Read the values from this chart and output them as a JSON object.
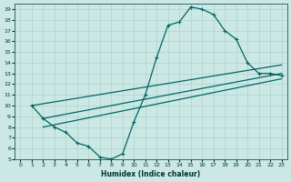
{
  "xlabel": "Humidex (Indice chaleur)",
  "bg_color": "#cce8e4",
  "grid_color": "#aad4cc",
  "line_color": "#006666",
  "xlim": [
    -0.5,
    23.5
  ],
  "ylim": [
    5,
    19.5
  ],
  "xticks": [
    0,
    1,
    2,
    3,
    4,
    5,
    6,
    7,
    8,
    9,
    10,
    11,
    12,
    13,
    14,
    15,
    16,
    17,
    18,
    19,
    20,
    21,
    22,
    23
  ],
  "yticks": [
    5,
    6,
    7,
    8,
    9,
    10,
    11,
    12,
    13,
    14,
    15,
    16,
    17,
    18,
    19
  ],
  "curve_main_x": [
    1,
    2,
    3,
    4,
    5,
    6,
    7,
    8,
    9,
    10,
    11,
    12,
    13,
    14,
    15
  ],
  "curve_main_y": [
    10,
    8.8,
    8.0,
    7.5,
    6.5,
    6.2,
    5.2,
    5.0,
    5.5,
    8.5,
    11.0,
    14.5,
    17.5,
    17.8,
    19.2
  ],
  "curve_top_x": [
    15,
    16,
    17,
    18,
    19,
    20,
    21,
    22,
    23
  ],
  "curve_top_y": [
    19.2,
    19.0,
    18.5,
    17.0,
    16.2,
    14.0,
    13.0,
    13.0,
    12.8
  ],
  "line1_x": [
    1,
    23
  ],
  "line1_y": [
    10.0,
    13.8
  ],
  "line2_x": [
    2,
    23
  ],
  "line2_y": [
    8.8,
    13.0
  ],
  "line3_x": [
    2,
    23
  ],
  "line3_y": [
    8.0,
    12.5
  ]
}
